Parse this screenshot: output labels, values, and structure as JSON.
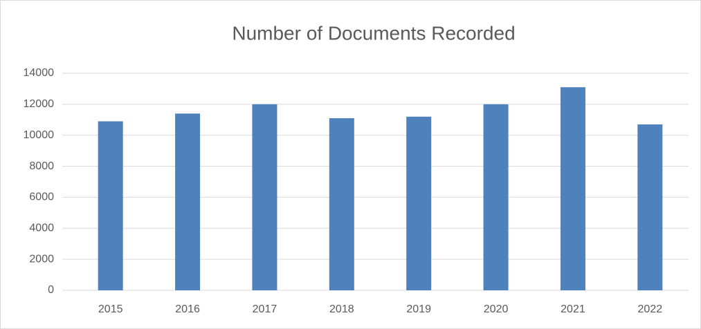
{
  "chart_data": {
    "type": "bar",
    "title": "Number of Documents Recorded",
    "categories": [
      "2015",
      "2016",
      "2017",
      "2018",
      "2019",
      "2020",
      "2021",
      "2022"
    ],
    "values": [
      10900,
      11400,
      12000,
      11100,
      11200,
      12000,
      13100,
      10700
    ],
    "color": "#4f81bd",
    "ylim": [
      0,
      14000
    ],
    "yticks": [
      0,
      2000,
      4000,
      6000,
      8000,
      10000,
      12000,
      14000
    ],
    "grid": true
  }
}
